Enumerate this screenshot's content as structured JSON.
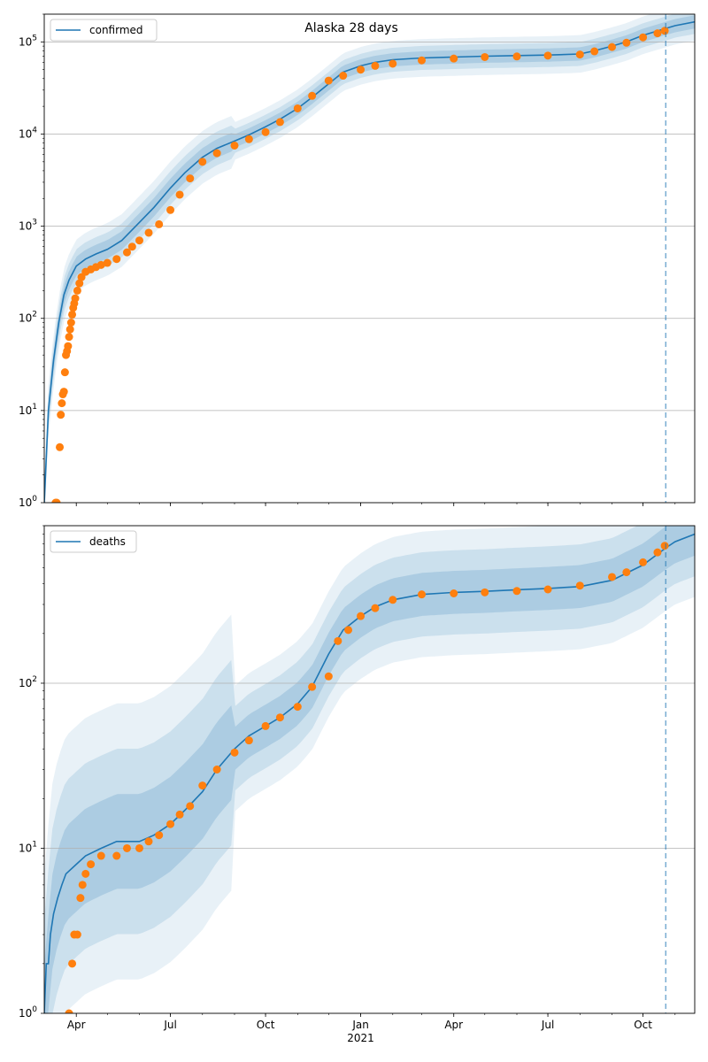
{
  "figure": {
    "title": "Alaska 28 days"
  },
  "chart_data": [
    {
      "type": "line",
      "title": "Alaska 28 days",
      "legend": [
        "confirmed"
      ],
      "legend_position": "top-left",
      "yscale": "log",
      "ylim": [
        1,
        200000
      ],
      "xlim": [
        "2020-03-01",
        "2021-11-20"
      ],
      "y_ticks": [
        1,
        10,
        100,
        1000,
        10000,
        100000
      ],
      "y_tick_labels": [
        "10^0",
        "10^1",
        "10^2",
        "10^3",
        "10^4",
        "10^5"
      ],
      "x_ticks": [
        "2020-04-01",
        "2020-07-01",
        "2020-10-01",
        "2021-01-01",
        "2021-04-01",
        "2021-07-01",
        "2021-10-01"
      ],
      "x_tick_labels": [],
      "grid": "horizontal",
      "forecast_start": "2021-10-23",
      "series": [
        {
          "name": "confirmed",
          "kind": "model-median-line",
          "color": "#1f77b4",
          "x": [
            "2020-03-01",
            "2020-03-05",
            "2020-03-10",
            "2020-03-15",
            "2020-03-20",
            "2020-03-25",
            "2020-04-01",
            "2020-04-10",
            "2020-04-20",
            "2020-05-01",
            "2020-05-15",
            "2020-06-01",
            "2020-06-15",
            "2020-07-01",
            "2020-07-15",
            "2020-08-01",
            "2020-08-15",
            "2020-09-01",
            "2020-09-15",
            "2020-10-01",
            "2020-10-15",
            "2020-11-01",
            "2020-11-15",
            "2020-12-01",
            "2020-12-15",
            "2021-01-01",
            "2021-01-15",
            "2021-02-01",
            "2021-03-01",
            "2021-04-01",
            "2021-05-01",
            "2021-06-01",
            "2021-07-01",
            "2021-08-01",
            "2021-08-15",
            "2021-09-01",
            "2021-09-15",
            "2021-10-01",
            "2021-10-23",
            "2021-11-01",
            "2021-11-20"
          ],
          "values": [
            1,
            10,
            35,
            90,
            180,
            260,
            370,
            440,
            500,
            560,
            700,
            1100,
            1600,
            2600,
            3800,
            5600,
            7000,
            8400,
            9800,
            12000,
            14500,
            19000,
            25000,
            35000,
            47000,
            55000,
            60000,
            64000,
            67000,
            68500,
            70000,
            71000,
            72000,
            74000,
            80000,
            90000,
            100000,
            118000,
            140000,
            150000,
            165000
          ]
        },
        {
          "name": "",
          "kind": "observed-points",
          "color": "#ff7f0e",
          "x": [
            "2020-03-12",
            "2020-03-13",
            "2020-03-16",
            "2020-03-17",
            "2020-03-18",
            "2020-03-19",
            "2020-03-20",
            "2020-03-21",
            "2020-03-22",
            "2020-03-23",
            "2020-03-24",
            "2020-03-25",
            "2020-03-26",
            "2020-03-27",
            "2020-03-28",
            "2020-03-29",
            "2020-03-30",
            "2020-03-31",
            "2020-04-02",
            "2020-04-04",
            "2020-04-06",
            "2020-04-10",
            "2020-04-15",
            "2020-04-20",
            "2020-04-25",
            "2020-05-01",
            "2020-05-10",
            "2020-05-20",
            "2020-05-25",
            "2020-06-01",
            "2020-06-10",
            "2020-06-20",
            "2020-07-01",
            "2020-07-10",
            "2020-07-20",
            "2020-08-01",
            "2020-08-15",
            "2020-09-01",
            "2020-09-15",
            "2020-10-01",
            "2020-10-15",
            "2020-11-01",
            "2020-11-15",
            "2020-12-01",
            "2020-12-15",
            "2021-01-01",
            "2021-01-15",
            "2021-02-01",
            "2021-03-01",
            "2021-04-01",
            "2021-05-01",
            "2021-06-01",
            "2021-07-01",
            "2021-08-01",
            "2021-08-15",
            "2021-09-01",
            "2021-09-15",
            "2021-10-01",
            "2021-10-15",
            "2021-10-22"
          ],
          "values": [
            1,
            1,
            4,
            9,
            12,
            15,
            16,
            26,
            40,
            44,
            50,
            63,
            76,
            90,
            110,
            130,
            145,
            165,
            200,
            240,
            280,
            320,
            340,
            360,
            380,
            400,
            440,
            520,
            600,
            700,
            850,
            1050,
            1500,
            2200,
            3300,
            5000,
            6200,
            7500,
            8800,
            10500,
            13500,
            19000,
            26000,
            38000,
            43000,
            50000,
            55000,
            58000,
            63000,
            66000,
            68500,
            69500,
            71000,
            73000,
            79000,
            88000,
            98000,
            112000,
            124000,
            132000
          ]
        }
      ]
    },
    {
      "type": "line",
      "title": "",
      "legend": [
        "deaths"
      ],
      "legend_position": "top-left",
      "yscale": "log",
      "ylim": [
        1,
        900
      ],
      "xlim": [
        "2020-03-01",
        "2021-11-20"
      ],
      "y_ticks": [
        1,
        10,
        100
      ],
      "y_tick_labels": [
        "10^0",
        "10^1",
        "10^2"
      ],
      "x_ticks": [
        "2020-04-01",
        "2020-07-01",
        "2020-10-01",
        "2021-01-01",
        "2021-04-01",
        "2021-07-01",
        "2021-10-01"
      ],
      "x_tick_labels": [
        "Apr",
        "Jul",
        "Oct",
        "Jan",
        "Apr",
        "Jul",
        "Oct"
      ],
      "x_year_label": "2021",
      "grid": "horizontal",
      "forecast_start": "2021-10-23",
      "series": [
        {
          "name": "deaths",
          "kind": "model-median-line",
          "color": "#1f77b4",
          "x": [
            "2020-03-01",
            "2020-03-03",
            "2020-03-05",
            "2020-03-07",
            "2020-03-10",
            "2020-03-14",
            "2020-03-18",
            "2020-03-22",
            "2020-04-01",
            "2020-04-10",
            "2020-04-25",
            "2020-05-10",
            "2020-06-01",
            "2020-06-15",
            "2020-07-01",
            "2020-07-15",
            "2020-08-01",
            "2020-08-15",
            "2020-09-01",
            "2020-09-15",
            "2020-10-01",
            "2020-10-15",
            "2020-11-01",
            "2020-11-15",
            "2020-12-01",
            "2020-12-15",
            "2021-01-01",
            "2021-01-15",
            "2021-02-01",
            "2021-03-01",
            "2021-04-01",
            "2021-05-01",
            "2021-06-01",
            "2021-07-01",
            "2021-08-01",
            "2021-09-01",
            "2021-10-01",
            "2021-10-23",
            "2021-11-01",
            "2021-11-20"
          ],
          "values": [
            1,
            2,
            2,
            3,
            4,
            5,
            6,
            7,
            8,
            9,
            10,
            11,
            11,
            12,
            14,
            17,
            22,
            30,
            40,
            48,
            55,
            62,
            75,
            95,
            150,
            210,
            255,
            290,
            320,
            345,
            355,
            360,
            368,
            375,
            385,
            420,
            520,
            660,
            720,
            800
          ]
        },
        {
          "name": "",
          "kind": "observed-points",
          "color": "#ff7f0e",
          "x": [
            "2020-03-25",
            "2020-03-28",
            "2020-03-30",
            "2020-04-02",
            "2020-04-05",
            "2020-04-07",
            "2020-04-10",
            "2020-04-15",
            "2020-04-25",
            "2020-05-10",
            "2020-05-20",
            "2020-06-01",
            "2020-06-10",
            "2020-06-20",
            "2020-07-01",
            "2020-07-10",
            "2020-07-20",
            "2020-08-01",
            "2020-08-15",
            "2020-09-01",
            "2020-09-15",
            "2020-10-01",
            "2020-10-15",
            "2020-11-01",
            "2020-11-15",
            "2020-12-01",
            "2020-12-10",
            "2020-12-20",
            "2021-01-01",
            "2021-01-15",
            "2021-02-01",
            "2021-03-01",
            "2021-04-01",
            "2021-05-01",
            "2021-06-01",
            "2021-07-01",
            "2021-08-01",
            "2021-09-01",
            "2021-09-15",
            "2021-10-01",
            "2021-10-15",
            "2021-10-22"
          ],
          "values": [
            1,
            2,
            3,
            3,
            5,
            6,
            7,
            8,
            9,
            9,
            10,
            10,
            11,
            12,
            14,
            16,
            18,
            24,
            30,
            38,
            45,
            55,
            62,
            72,
            95,
            110,
            180,
            210,
            255,
            285,
            320,
            345,
            350,
            355,
            362,
            370,
            390,
            440,
            470,
            540,
            620,
            680
          ]
        }
      ]
    }
  ]
}
